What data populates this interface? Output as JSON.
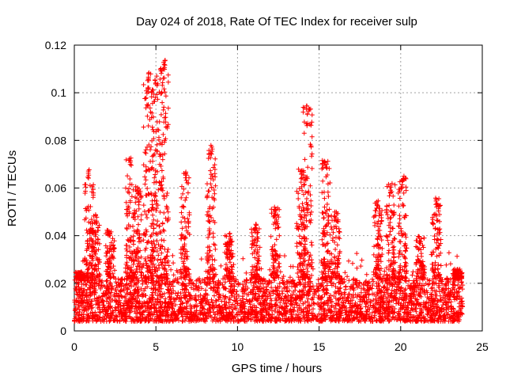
{
  "chart_data": {
    "type": "scatter",
    "title": "Day 024 of 2018, Rate Of TEC Index for receiver sulp",
    "xlabel": "GPS time / hours",
    "ylabel": "ROTI / TECUs",
    "xlim": [
      0,
      25
    ],
    "ylim": [
      0,
      0.12
    ],
    "xticks": [
      0,
      5,
      10,
      15,
      20,
      25
    ],
    "yticks": [
      0,
      0.02,
      0.04,
      0.06,
      0.08,
      0.1,
      0.12
    ],
    "xtick_labels": [
      "0",
      "5",
      "10",
      "15",
      "20",
      "25"
    ],
    "ytick_labels": [
      "0",
      "0.02",
      "0.04",
      "0.06",
      "0.08",
      "0.1",
      "0.12"
    ],
    "grid": true,
    "marker": "+",
    "series": [
      {
        "name": "ROTI",
        "color": "#ff0000",
        "time_range_hours": [
          0,
          23.8
        ],
        "baseline_range": [
          0.004,
          0.022
        ],
        "peaks": [
          {
            "x": 0.35,
            "y": 0.025
          },
          {
            "x": 0.9,
            "y": 0.068
          },
          {
            "x": 1.3,
            "y": 0.049
          },
          {
            "x": 2.2,
            "y": 0.043
          },
          {
            "x": 3.4,
            "y": 0.073
          },
          {
            "x": 3.9,
            "y": 0.061
          },
          {
            "x": 4.5,
            "y": 0.109
          },
          {
            "x": 5.0,
            "y": 0.107
          },
          {
            "x": 5.5,
            "y": 0.114
          },
          {
            "x": 6.8,
            "y": 0.067
          },
          {
            "x": 8.4,
            "y": 0.078
          },
          {
            "x": 9.5,
            "y": 0.041
          },
          {
            "x": 11.1,
            "y": 0.045
          },
          {
            "x": 12.3,
            "y": 0.052
          },
          {
            "x": 13.9,
            "y": 0.068
          },
          {
            "x": 14.3,
            "y": 0.095
          },
          {
            "x": 15.4,
            "y": 0.072
          },
          {
            "x": 16.0,
            "y": 0.05
          },
          {
            "x": 18.6,
            "y": 0.055
          },
          {
            "x": 19.4,
            "y": 0.062
          },
          {
            "x": 20.1,
            "y": 0.065
          },
          {
            "x": 21.2,
            "y": 0.04
          },
          {
            "x": 22.2,
            "y": 0.056
          },
          {
            "x": 23.5,
            "y": 0.026
          }
        ]
      }
    ]
  }
}
